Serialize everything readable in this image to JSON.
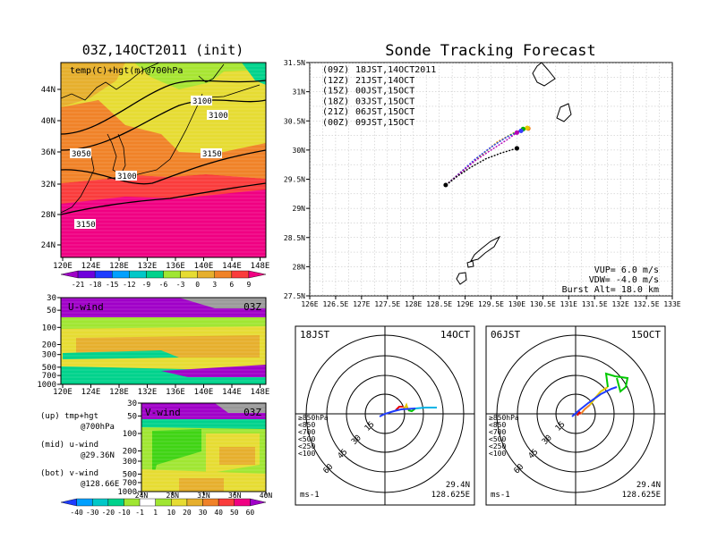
{
  "left_top": {
    "title": "03Z,14OCT2011 (init)",
    "label": "temp(C)+hgt(m)@700hPa",
    "lat_ticks": [
      "44N",
      "40N",
      "36N",
      "32N",
      "28N",
      "24N"
    ],
    "lon_ticks": [
      "120E",
      "124E",
      "128E",
      "132E",
      "136E",
      "140E",
      "144E",
      "148E"
    ],
    "contour_labels": [
      "3100",
      "3100",
      "3050",
      "3150",
      "3100",
      "3150"
    ]
  },
  "temp_colorbar": {
    "labels": [
      "-21",
      "-18",
      "-15",
      "-12",
      "-9",
      "-6",
      "-3",
      "0",
      "3",
      "6",
      "9"
    ],
    "colors": [
      "#a000c8",
      "#6e00dc",
      "#1e3cff",
      "#00a0ff",
      "#00c8c8",
      "#00d28c",
      "#a0e632",
      "#e6dc32",
      "#e6af2d",
      "#f08228",
      "#fa3c3c",
      "#f00082"
    ]
  },
  "u_panel": {
    "label": "U-wind",
    "time": "03Z",
    "p_ticks": [
      "30",
      "50",
      "100",
      "200",
      "300",
      "500",
      "700",
      "1000"
    ],
    "lon_ticks": [
      "120E",
      "124E",
      "128E",
      "132E",
      "136E",
      "140E",
      "144E",
      "148E"
    ]
  },
  "v_panel": {
    "label": "V-wind",
    "time": "03Z",
    "p_ticks": [
      "30",
      "50",
      "100",
      "200",
      "300",
      "500",
      "700",
      "1000"
    ],
    "lat_ticks": [
      "24N",
      "28N",
      "32N",
      "36N",
      "40N"
    ]
  },
  "legend_text": [
    "(up) tmp+hgt",
    "@700hPa",
    "(mid) u-wind",
    "@29.36N",
    "(bot) v-wind",
    "@128.66E"
  ],
  "wind_colorbar": {
    "labels": [
      "-40",
      "-30",
      "-20",
      "-10",
      "-1",
      "1",
      "10",
      "20",
      "30",
      "40",
      "50",
      "60"
    ],
    "colors": [
      "#1e3cff",
      "#00a0ff",
      "#00c8c8",
      "#00d28c",
      "#a0e632",
      "#ffffff",
      "#a0e632",
      "#e6dc32",
      "#e6af2d",
      "#f08228",
      "#fa3c3c",
      "#f00082",
      "#a000c8"
    ]
  },
  "sonde": {
    "title": "Sonde Tracking Forecast",
    "legend": [
      {
        "code": "(09Z)",
        "time": "18JST,14OCT2011",
        "color": "#000000"
      },
      {
        "code": "(12Z)",
        "time": "21JST,14OCT",
        "color": "#b400b4"
      },
      {
        "code": "(15Z)",
        "time": "00JST,15OCT",
        "color": "#3c3cff"
      },
      {
        "code": "(18Z)",
        "time": "03JST,15OCT",
        "color": "#00b400"
      },
      {
        "code": "(21Z)",
        "time": "06JST,15OCT",
        "color": "#e6c800"
      },
      {
        "code": "(00Z)",
        "time": "09JST,15OCT",
        "color": "#f08228"
      }
    ],
    "lat_ticks": [
      "31.5N",
      "31N",
      "30.5N",
      "30N",
      "29.5N",
      "29N",
      "28.5N",
      "28N",
      "27.5N"
    ],
    "lon_ticks": [
      "126E",
      "126.5E",
      "127E",
      "127.5E",
      "128E",
      "128.5E",
      "129E",
      "129.5E",
      "130E",
      "130.5E",
      "131E",
      "131.5E",
      "132E",
      "132.5E",
      "133E"
    ],
    "params": [
      "VUP=  6.0 m/s",
      "VDW= -4.0 m/s",
      "Burst Alt= 18.0 km"
    ],
    "launch": [
      128.625,
      29.4
    ],
    "tracks": [
      {
        "color": "#000000",
        "points": [
          [
            128.63,
            29.4
          ],
          [
            128.85,
            29.55
          ],
          [
            129.1,
            29.7
          ],
          [
            129.4,
            29.85
          ],
          [
            129.7,
            29.95
          ],
          [
            130.0,
            30.03
          ]
        ]
      },
      {
        "color": "#b400b4",
        "points": [
          [
            128.63,
            29.4
          ],
          [
            128.9,
            29.6
          ],
          [
            129.2,
            29.82
          ],
          [
            129.5,
            30.0
          ],
          [
            129.8,
            30.17
          ],
          [
            130.0,
            30.3
          ]
        ]
      },
      {
        "color": "#3c3cff",
        "points": [
          [
            128.63,
            29.4
          ],
          [
            128.9,
            29.61
          ],
          [
            129.2,
            29.85
          ],
          [
            129.5,
            30.05
          ],
          [
            129.8,
            30.22
          ],
          [
            130.08,
            30.33
          ]
        ]
      },
      {
        "color": "#00b400",
        "points": [
          [
            128.63,
            29.4
          ],
          [
            128.92,
            29.62
          ],
          [
            129.25,
            29.88
          ],
          [
            129.55,
            30.08
          ],
          [
            129.85,
            30.25
          ],
          [
            130.12,
            30.36
          ]
        ]
      },
      {
        "color": "#e6c800",
        "points": [
          [
            128.63,
            29.4
          ],
          [
            128.94,
            29.64
          ],
          [
            129.3,
            29.9
          ],
          [
            129.6,
            30.12
          ],
          [
            129.92,
            30.28
          ],
          [
            130.2,
            30.38
          ]
        ]
      },
      {
        "color": "#f08228",
        "points": [
          [
            128.63,
            29.4
          ],
          [
            128.95,
            29.65
          ],
          [
            129.32,
            29.92
          ],
          [
            129.62,
            30.14
          ],
          [
            129.95,
            30.3
          ],
          [
            130.22,
            30.37
          ]
        ]
      }
    ]
  },
  "hodo_left": {
    "time": "18JST",
    "date": "14OCT",
    "lat": "29.4N",
    "lon": "128.625E",
    "unit": "ms-1",
    "rings": [
      "15",
      "30",
      "45",
      "60"
    ]
  },
  "hodo_right": {
    "time": "06JST",
    "date": "15OCT",
    "lat": "29.4N",
    "lon": "128.625E",
    "unit": "ms-1",
    "rings": [
      "15",
      "30",
      "45",
      "60"
    ]
  },
  "hodo_legend": [
    {
      "label": "≥850hPa",
      "color": "#e60000"
    },
    {
      "label": "<850",
      "color": "#f08228"
    },
    {
      "label": "<700",
      "color": "#e6c800"
    },
    {
      "label": "<500",
      "color": "#00c800"
    },
    {
      "label": "<250",
      "color": "#00b4e6"
    },
    {
      "label": "<100",
      "color": "#1e3cff"
    }
  ],
  "chart_data": [
    {
      "type": "line",
      "title": "Sonde Tracking Forecast",
      "xlabel": "",
      "ylabel": "",
      "xlim": [
        126,
        133
      ],
      "ylim": [
        27.5,
        31.5
      ],
      "series": [
        {
          "name": "(09Z) 18JST,14OCT2011",
          "x": [
            128.63,
            128.85,
            129.1,
            129.4,
            129.7,
            130.0
          ],
          "y": [
            29.4,
            29.55,
            29.7,
            29.85,
            29.95,
            30.03
          ]
        },
        {
          "name": "(12Z) 21JST,14OCT",
          "x": [
            128.63,
            128.9,
            129.2,
            129.5,
            129.8,
            130.0
          ],
          "y": [
            29.4,
            29.6,
            29.82,
            30.0,
            30.17,
            30.3
          ]
        },
        {
          "name": "(15Z) 00JST,15OCT",
          "x": [
            128.63,
            128.9,
            129.2,
            129.5,
            129.8,
            130.08
          ],
          "y": [
            29.4,
            29.61,
            29.85,
            30.05,
            30.22,
            30.33
          ]
        },
        {
          "name": "(18Z) 03JST,15OCT",
          "x": [
            128.63,
            128.92,
            129.25,
            129.55,
            129.85,
            130.12
          ],
          "y": [
            29.4,
            29.62,
            29.88,
            30.08,
            30.25,
            30.36
          ]
        },
        {
          "name": "(21Z) 06JST,15OCT",
          "x": [
            128.63,
            128.94,
            129.3,
            129.6,
            129.92,
            130.2
          ],
          "y": [
            29.4,
            29.64,
            29.9,
            30.12,
            30.28,
            30.38
          ]
        },
        {
          "name": "(00Z) 09JST,15OCT",
          "x": [
            128.63,
            128.95,
            129.32,
            129.62,
            129.95,
            130.22
          ],
          "y": [
            29.4,
            29.65,
            29.92,
            30.14,
            30.3,
            30.37
          ]
        }
      ]
    },
    {
      "type": "heatmap",
      "title": "03Z,14OCT2011 (init)",
      "xlabel": "",
      "ylabel": "",
      "xlim": [
        120,
        149
      ],
      "ylim": [
        22,
        47
      ]
    },
    {
      "type": "heatmap",
      "title": "U-wind",
      "xlim": [
        120,
        149
      ],
      "ylim": [
        1000,
        30
      ]
    },
    {
      "type": "heatmap",
      "title": "V-wind",
      "xlim": [
        24,
        40
      ],
      "ylim": [
        1000,
        30
      ]
    }
  ]
}
